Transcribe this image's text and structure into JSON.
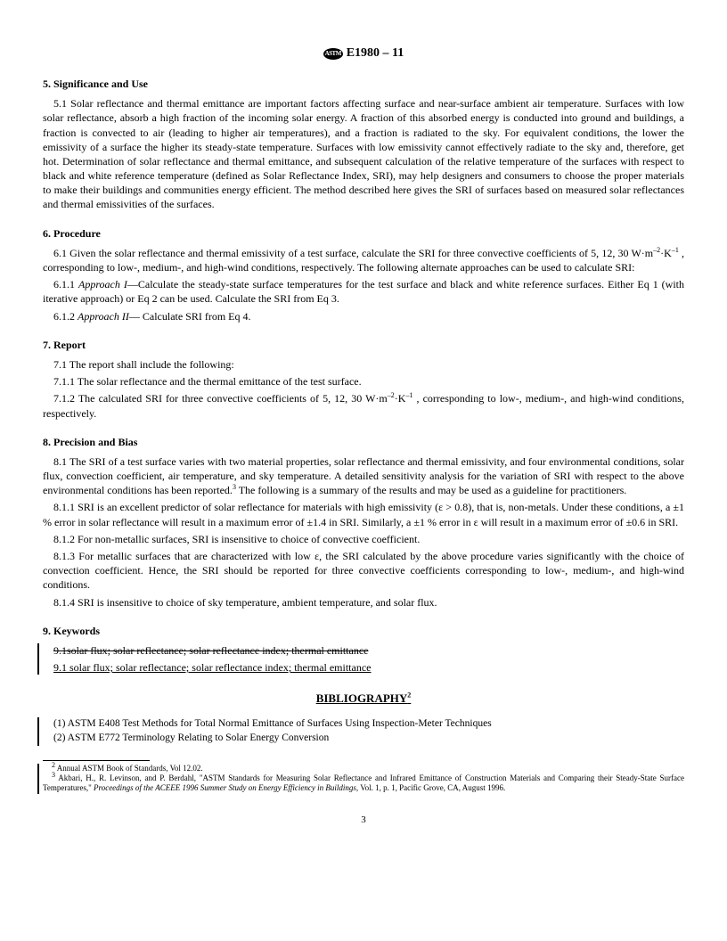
{
  "header": {
    "designation": "E1980 – 11",
    "logo_text": "ASTM"
  },
  "sections": {
    "s5": {
      "heading": "5.  Significance and Use",
      "p1": "5.1  Solar reflectance and thermal emittance are important factors affecting surface and near-surface ambient air temperature. Surfaces with low solar reflectance, absorb a high fraction of the incoming solar energy. A fraction of this absorbed energy is conducted into ground and buildings, a fraction is convected to air (leading to higher air temperatures), and a fraction is radiated to the sky. For equivalent conditions, the lower the emissivity of a surface the higher its steady-state temperature. Surfaces with low emissivity cannot effectively radiate to the sky and, therefore, get hot. Determination of solar reflectance and thermal emittance, and subsequent calculation of the relative temperature of the surfaces with respect to black and white reference temperature (defined as Solar Reflectance Index, SRI), may help designers and consumers to choose the proper materials to make their buildings and communities energy efficient. The method described here gives the SRI of surfaces based on measured solar reflectances and thermal emissivities of the surfaces."
    },
    "s6": {
      "heading": "6.  Procedure",
      "p1_pre": "6.1  Given the solar reflectance and thermal emissivity of a test surface, calculate the SRI for three convective coefficients of 5, 12, 30 W·m",
      "p1_post": " , corresponding to low-, medium-, and high-wind conditions, respectively. The following alternate approaches can be used to calculate SRI:",
      "p2_a": "6.1.1  ",
      "p2_b": "Approach I",
      "p2_c": "—Calculate the steady-state surface temperatures for the test surface and black and white reference surfaces. Either Eq 1 (with iterative approach) or Eq 2 can be used. Calculate the SRI from Eq 3.",
      "p3_a": "6.1.2  ",
      "p3_b": "Approach II",
      "p3_c": "— Calculate SRI from Eq 4."
    },
    "s7": {
      "heading": "7.  Report",
      "p1": "7.1  The report shall include the following:",
      "p2": "7.1.1  The solar reflectance and the thermal emittance of the test surface.",
      "p3_pre": "7.1.2 The calculated SRI for three convective coefficients of 5, 12, 30 W·m",
      "p3_post": " , corresponding to low-, medium-, and high-wind conditions, respectively."
    },
    "s8": {
      "heading": "8.  Precision and Bias",
      "p1_pre": "8.1 The SRI of a test surface varies with two material properties, solar reflectance and thermal emissivity, and four environmental conditions, solar flux, convection coefficient, air temperature, and sky temperature. A detailed sensitivity analysis for the variation of SRI with respect to the above environmental conditions has been reported.",
      "p1_post": " The following is a summary of the results and may be used as a guideline for practitioners.",
      "p2": "8.1.1  SRI is an excellent predictor of solar reflectance for materials with high emissivity (ε > 0.8), that is, non-metals. Under these conditions, a ±1 % error in solar reflectance will result in a maximum error of ±1.4 in SRI. Similarly, a ±1 % error in ε will result in a maximum error of ±0.6 in SRI.",
      "p3": "8.1.2  For non-metallic surfaces, SRI is insensitive to choice of convective coefficient.",
      "p4": "8.1.3  For metallic surfaces that are characterized with low ε, the SRI calculated by the above procedure varies significantly with the choice of convection coefficient. Hence, the SRI should be reported for three convective coefficients corresponding to low-, medium-, and high-wind conditions.",
      "p5": "8.1.4  SRI is insensitive to choice of sky temperature, ambient temperature, and solar flux."
    },
    "s9": {
      "heading": "9.  Keywords",
      "p_strike": "9.1solar flux; solar reflectance; solar reflectance index; thermal emittance",
      "p_new": "9.1  solar flux; solar reflectance; solar reflectance index; thermal emittance"
    }
  },
  "bibliography": {
    "title": "BIBLIOGRAPHY",
    "sup": "2",
    "entries": [
      "(1)  ASTM E408 Test Methods for Total Normal Emittance of Surfaces Using Inspection-Meter Techniques",
      "(2)  ASTM E772 Terminology Relating to Solar Energy Conversion"
    ]
  },
  "footnotes": {
    "f2_sup": "2",
    "f2": " Annual ASTM Book of Standards, Vol 12.02.",
    "f3_sup": "3",
    "f3_a": " Akbari, H., R. Levinson, and P. Berdahl, \"ASTM Standards for Measuring Solar Reflectance and Infrared Emittance of Construction Materials and Comparing their Steady-State Surface Temperatures,\"    ",
    "f3_b": "Proceedings of the ACEEE 1996 Summer Study on Energy Efficiency in Buildings",
    "f3_c": ", Vol. 1, p. 1, Pacific Grove, CA, August 1996."
  },
  "exp": {
    "neg2": "–2",
    "neg1": "–1",
    "k": "·K"
  },
  "page_number": "3"
}
